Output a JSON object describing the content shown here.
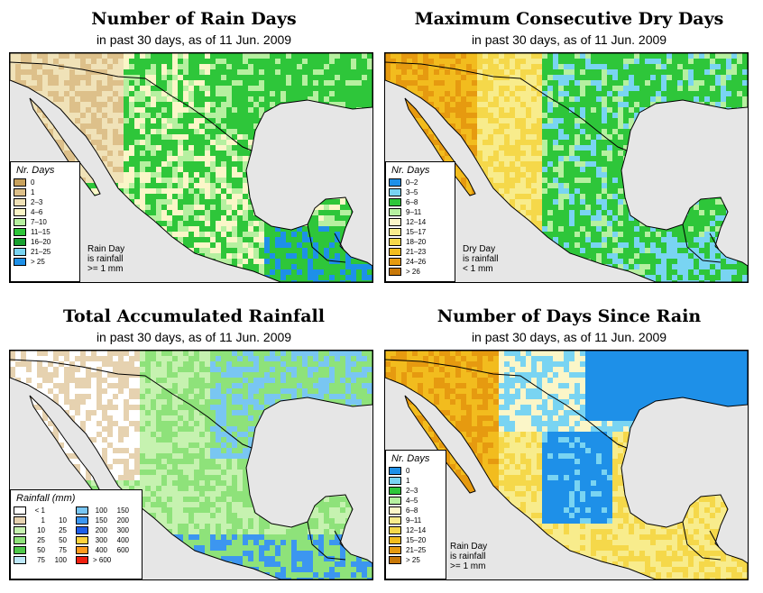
{
  "panels": [
    {
      "id": "rain-days",
      "title": "Number of Rain Days",
      "subtitle": "in past 30 days, as of  11 Jun. 2009",
      "legend_title": "Nr. Days",
      "legend": [
        {
          "label": "0",
          "color": "#c8a25e"
        },
        {
          "label": "1",
          "color": "#ddc08a"
        },
        {
          "label": "2–3",
          "color": "#f0e2b8"
        },
        {
          "label": "4–6",
          "color": "#fbf6c8"
        },
        {
          "label": "7–10",
          "color": "#b6f0a0"
        },
        {
          "label": "11–15",
          "color": "#2ec63a"
        },
        {
          "label": "16–20",
          "color": "#18a030"
        },
        {
          "label": "21–25",
          "color": "#79d4f2"
        },
        {
          "label": "> 25",
          "color": "#1e90e8"
        }
      ],
      "note": [
        "Rain Day",
        "is rainfall",
        ">= 1 mm"
      ]
    },
    {
      "id": "dry-days",
      "title": "Maximum Consecutive Dry Days",
      "subtitle": "in past 30 days, as of  11 Jun. 2009",
      "legend_title": "Nr. Days",
      "legend": [
        {
          "label": "0–2",
          "color": "#1e90e8"
        },
        {
          "label": "3–5",
          "color": "#79d4f2"
        },
        {
          "label": "6–8",
          "color": "#2ec63a"
        },
        {
          "label": "9–11",
          "color": "#b6f0a0"
        },
        {
          "label": "12–14",
          "color": "#fbf6c8"
        },
        {
          "label": "15–17",
          "color": "#f8ec8c"
        },
        {
          "label": "18–20",
          "color": "#f5d84a"
        },
        {
          "label": "21–23",
          "color": "#f2bc1e"
        },
        {
          "label": "24–26",
          "color": "#e69a10"
        },
        {
          "label": "> 26",
          "color": "#c87808"
        }
      ],
      "note": [
        "Dry Day",
        "is rainfall",
        "< 1 mm"
      ]
    },
    {
      "id": "accum-rain",
      "title": "Total Accumulated Rainfall",
      "subtitle": "in past 30 days, as of  11 Jun. 2009",
      "legend_title": "Rainfall (mm)",
      "legend_left": [
        {
          "a": "< 1",
          "b": "",
          "color": "#ffffff"
        },
        {
          "a": "1",
          "b": "10",
          "color": "#e6d2b0"
        },
        {
          "a": "10",
          "b": "25",
          "color": "#c6f2b0"
        },
        {
          "a": "25",
          "b": "50",
          "color": "#8ee27a"
        },
        {
          "a": "50",
          "b": "75",
          "color": "#4ec84a"
        },
        {
          "a": "75",
          "b": "100",
          "color": "#bde8fa"
        }
      ],
      "legend_right": [
        {
          "a": "100",
          "b": "150",
          "color": "#79c6f2"
        },
        {
          "a": "150",
          "b": "200",
          "color": "#3c96f0"
        },
        {
          "a": "200",
          "b": "300",
          "color": "#1e5ee8"
        },
        {
          "a": "300",
          "b": "400",
          "color": "#ffd23c"
        },
        {
          "a": "400",
          "b": "600",
          "color": "#ff9a1e"
        },
        {
          "a": "> 600",
          "b": "",
          "color": "#f02010"
        }
      ]
    },
    {
      "id": "since-rain",
      "title": "Number of Days Since Rain",
      "subtitle": "in past 30 days, as of  11 Jun. 2009",
      "legend_title": "Nr. Days",
      "legend": [
        {
          "label": "0",
          "color": "#1e90e8"
        },
        {
          "label": "1",
          "color": "#79d4f2"
        },
        {
          "label": "2–3",
          "color": "#2ec63a"
        },
        {
          "label": "4–5",
          "color": "#b6f0a0"
        },
        {
          "label": "6–8",
          "color": "#fbf6c8"
        },
        {
          "label": "9–11",
          "color": "#f8ec8c"
        },
        {
          "label": "12–14",
          "color": "#f5d84a"
        },
        {
          "label": "15–20",
          "color": "#f2bc1e"
        },
        {
          "label": "21–25",
          "color": "#e69a10"
        },
        {
          "label": "> 25",
          "color": "#c87808"
        }
      ],
      "note": [
        "Rain Day",
        "is rainfall",
        ">= 1 mm"
      ]
    }
  ]
}
